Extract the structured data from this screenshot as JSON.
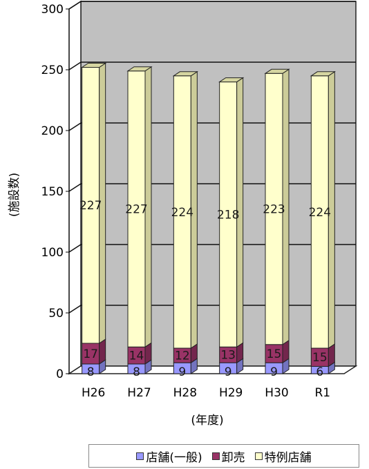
{
  "chart_data": {
    "type": "bar",
    "stacked": true,
    "categories": [
      "H26",
      "H27",
      "H28",
      "H29",
      "H30",
      "R1"
    ],
    "series": [
      {
        "name": "店舗(一般)",
        "values": [
          8,
          8,
          9,
          9,
          9,
          6
        ],
        "color": "#9999ff"
      },
      {
        "name": "卸売",
        "values": [
          17,
          14,
          12,
          13,
          15,
          15
        ],
        "color": "#993366"
      },
      {
        "name": "特例店舗",
        "values": [
          227,
          227,
          224,
          218,
          223,
          224
        ],
        "color": "#ffffcc"
      }
    ],
    "title": "",
    "xlabel": "(年度)",
    "ylabel": "(施設数)",
    "ylim": [
      0,
      300
    ],
    "yticks": [
      0,
      50,
      100,
      150,
      200,
      250,
      300
    ],
    "grid": true,
    "legend_position": "bottom",
    "wall_color": "#c0c0c0",
    "side_color": "#cccc99"
  }
}
